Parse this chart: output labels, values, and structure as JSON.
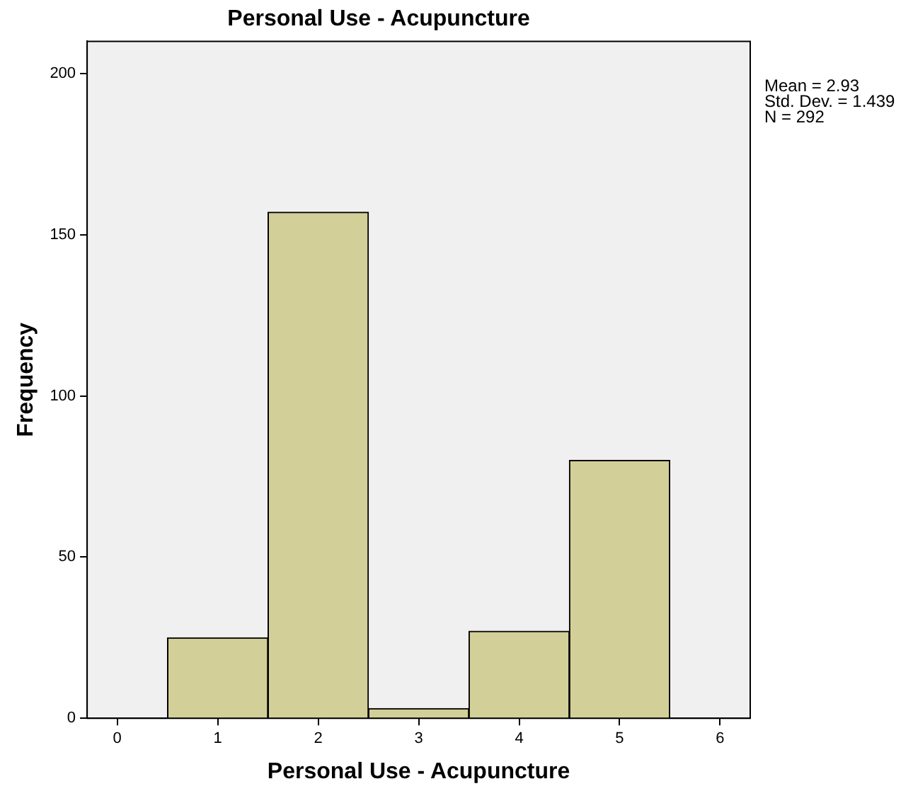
{
  "chart_data": {
    "type": "histogram",
    "title": "Personal Use - Acupuncture",
    "xlabel": "Personal Use - Acupuncture",
    "ylabel": "Frequency",
    "bins": [
      0.5,
      1.5,
      2.5,
      3.5,
      4.5,
      5.5
    ],
    "values": [
      25,
      157,
      3,
      27,
      80
    ],
    "color": "#d3cf98",
    "xlim": [
      -0.3,
      6.3
    ],
    "xticks": [
      0,
      1,
      2,
      3,
      4,
      5,
      6
    ],
    "ylim": [
      0,
      210
    ],
    "yticks": [
      0,
      50,
      100,
      150,
      200
    ],
    "grid": false,
    "legend": false,
    "annotations": [
      "Mean = 2.93",
      "Std. Dev. = 1.439",
      "N = 292"
    ]
  }
}
